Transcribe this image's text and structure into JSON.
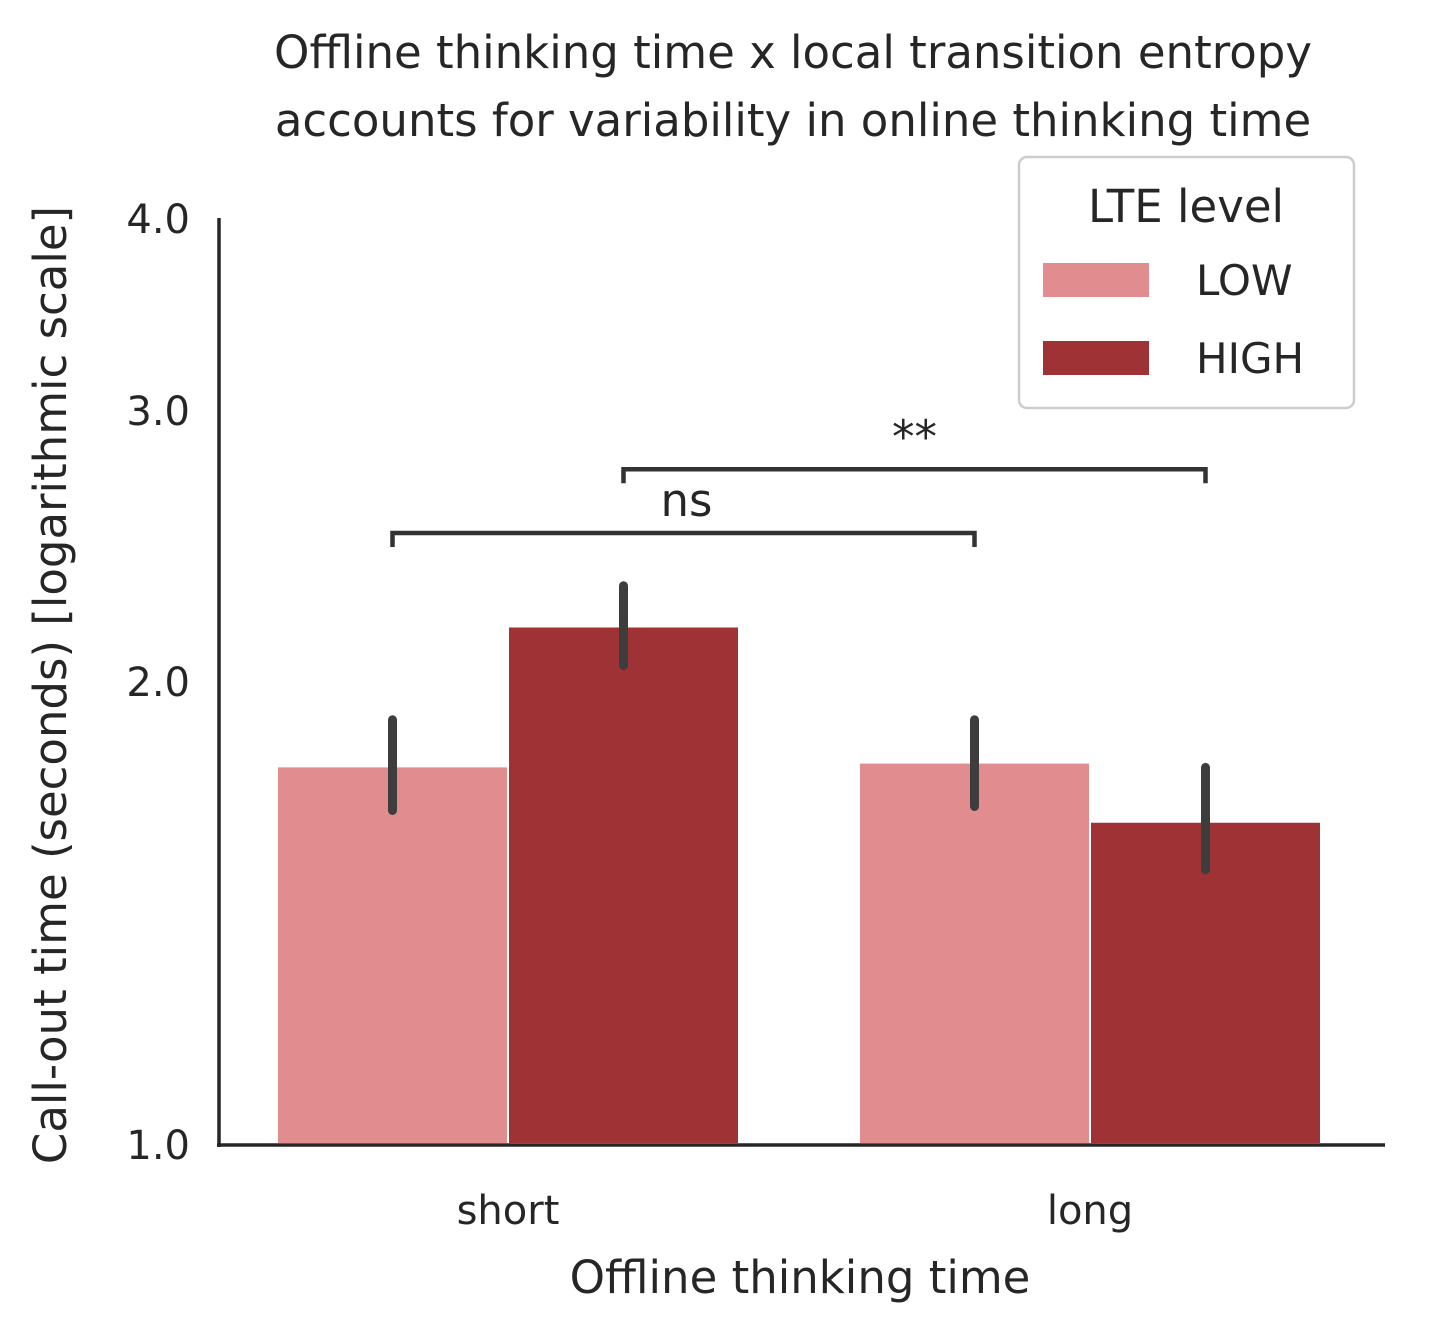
{
  "chart_data": {
    "type": "bar",
    "title_lines": [
      "Offline thinking time x local transition entropy",
      "accounts for variability in online thinking time"
    ],
    "xlabel": "Offline thinking time",
    "ylabel": "Call-out time (seconds) [logarithmic scale]",
    "y_scale": "log",
    "ylim": [
      1.0,
      4.0
    ],
    "yticks": [
      1.0,
      2.0,
      3.0,
      4.0
    ],
    "ytick_labels": [
      "1.0",
      "2.0",
      "3.0",
      "4.0"
    ],
    "categories": [
      "short",
      "long"
    ],
    "series": [
      {
        "name": "LOW",
        "color": "#e18c8e",
        "values": [
          1.76,
          1.77
        ],
        "err_low": [
          1.65,
          1.66
        ],
        "err_high": [
          1.89,
          1.89
        ]
      },
      {
        "name": "HIGH",
        "color": "#9e3234",
        "values": [
          2.17,
          1.62
        ],
        "err_low": [
          2.05,
          1.51
        ],
        "err_high": [
          2.31,
          1.76
        ]
      }
    ],
    "legend": {
      "title": "LTE level",
      "position": "top-right"
    },
    "grid": false,
    "annotations": [
      {
        "label": "ns",
        "from": [
          "short",
          "LOW"
        ],
        "to": [
          "long",
          "LOW"
        ],
        "y": 2.5
      },
      {
        "label": "**",
        "from": [
          "short",
          "HIGH"
        ],
        "to": [
          "long",
          "HIGH"
        ],
        "y": 2.75
      }
    ]
  }
}
